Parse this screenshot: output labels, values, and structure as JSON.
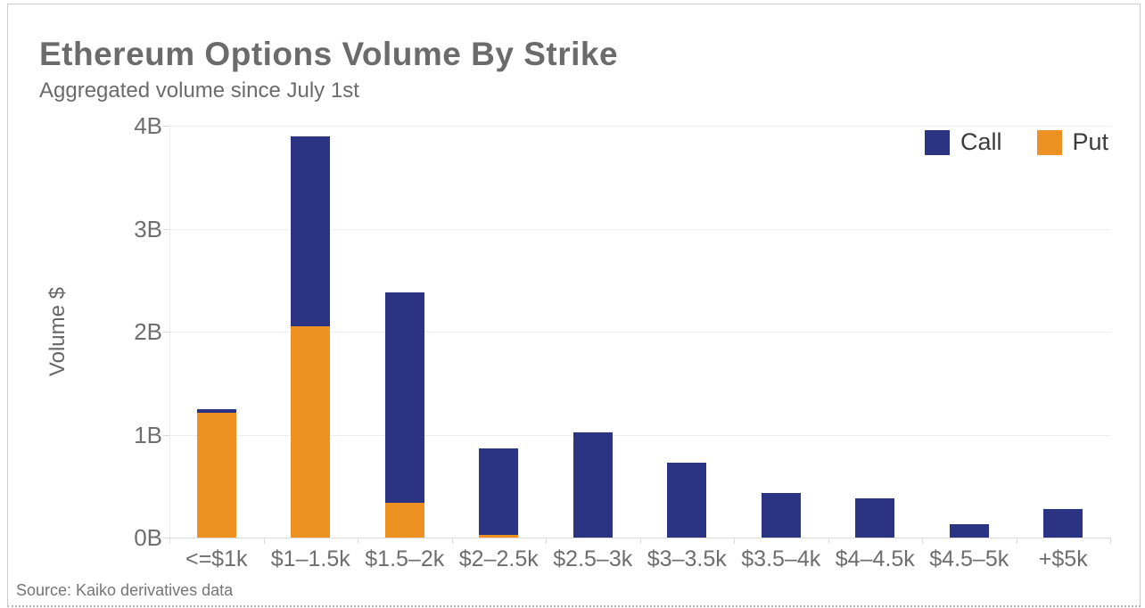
{
  "page": {
    "title": "Ethereum Options Volume By Strike",
    "subtitle": "Aggregated volume since July 1st",
    "source": "Source: Kaiko derivatives data"
  },
  "chart_data": {
    "type": "bar",
    "stacked": true,
    "title": "Ethereum Options Volume By Strike",
    "subtitle": "Aggregated volume since July 1st",
    "xlabel": "",
    "ylabel": "Volume $",
    "ylim": [
      0,
      4
    ],
    "y_unit": "billions of dollars",
    "yticks": [
      {
        "value": 0,
        "label": "0B"
      },
      {
        "value": 1,
        "label": "1B"
      },
      {
        "value": 2,
        "label": "2B"
      },
      {
        "value": 3,
        "label": "3B"
      },
      {
        "value": 4,
        "label": "4B"
      }
    ],
    "categories": [
      "<=$1k",
      "$1–1.5k",
      "$1.5–2k",
      "$2–2.5k",
      "$2.5–3k",
      "$3–3.5k",
      "$3.5–4k",
      "$4–4.5k",
      "$4.5–5k",
      "+$5k"
    ],
    "series": [
      {
        "name": "Call",
        "color": "#2b3483",
        "values": [
          0.04,
          1.85,
          2.04,
          0.84,
          1.02,
          0.73,
          0.43,
          0.38,
          0.13,
          0.28
        ]
      },
      {
        "name": "Put",
        "color": "#ed9222",
        "values": [
          1.21,
          2.05,
          0.34,
          0.03,
          0,
          0,
          0,
          0,
          0,
          0
        ]
      }
    ],
    "stack_order_bottom_to_top": [
      "Put",
      "Call"
    ],
    "totals": [
      1.25,
      3.9,
      2.38,
      0.87,
      1.02,
      0.73,
      0.43,
      0.38,
      0.13,
      0.28
    ],
    "legend_position": "top-right",
    "legend_labels": [
      "Call",
      "Put"
    ],
    "grid": "horizontal",
    "source": "Source: Kaiko derivatives data"
  }
}
